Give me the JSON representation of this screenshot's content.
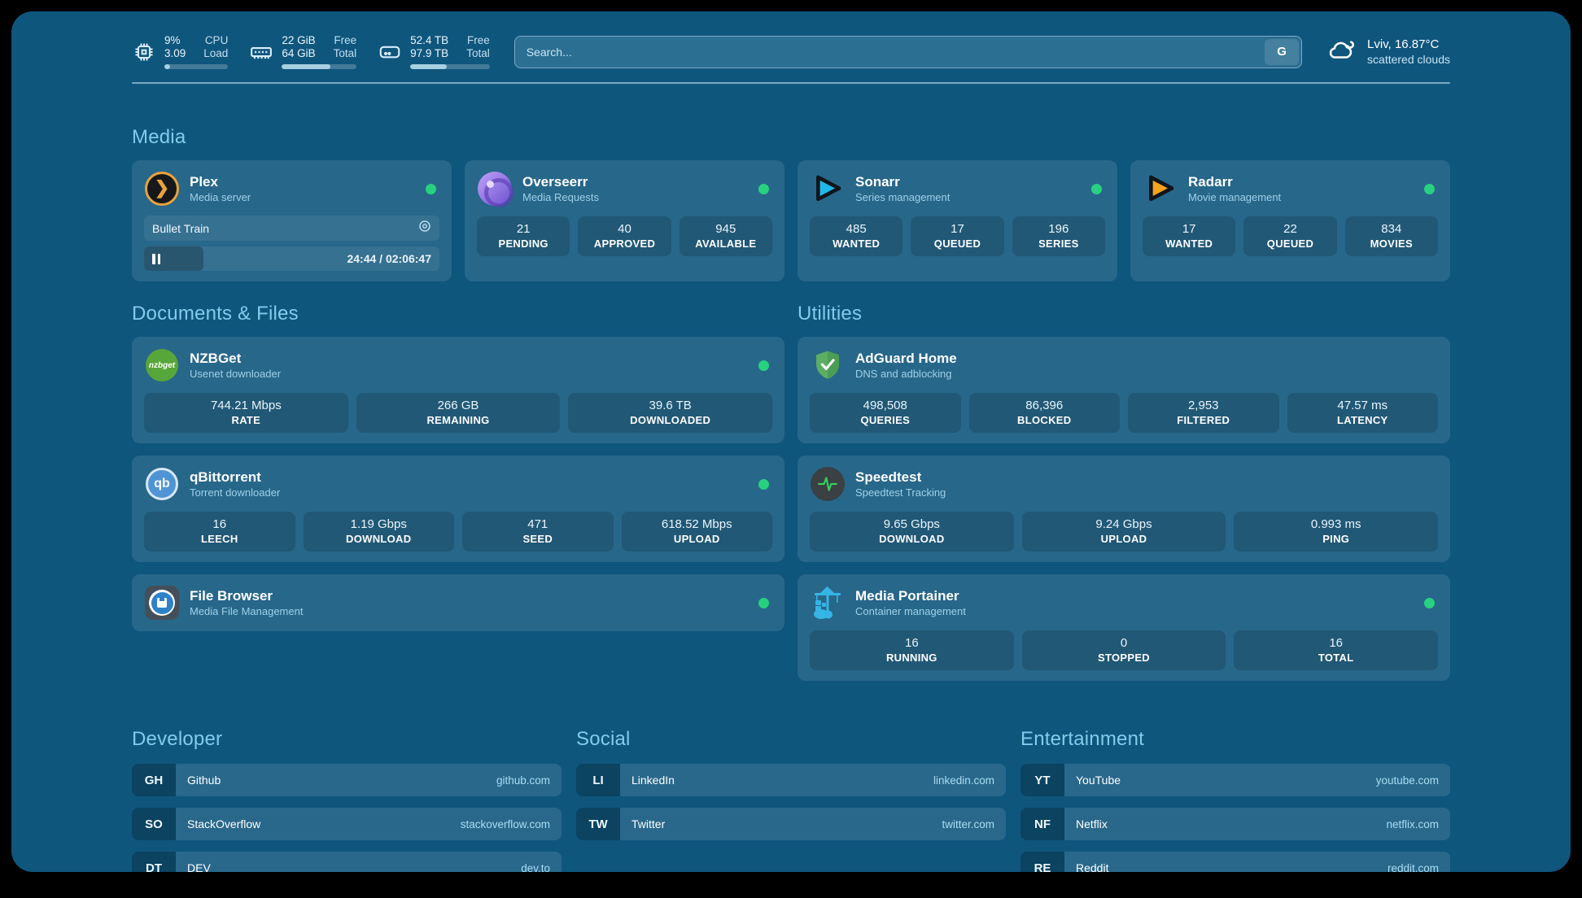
{
  "topbar": {
    "cpu": {
      "value1": "9%",
      "value2": "3.09",
      "label1": "CPU",
      "label2": "Load",
      "progress": 9
    },
    "ram": {
      "value1": "22 GiB",
      "value2": "64 GiB",
      "label1": "Free",
      "label2": "Total",
      "progress": 65
    },
    "disk": {
      "value1": "52.4 TB",
      "value2": "97.9 TB",
      "label1": "Free",
      "label2": "Total",
      "progress": 46
    },
    "search": {
      "placeholder": "Search...",
      "button_label": "G"
    },
    "weather": {
      "location_temp": "Lviv, 16.87°C",
      "condition": "scattered clouds"
    }
  },
  "sections": {
    "media": "Media",
    "documents": "Documents & Files",
    "utilities": "Utilities",
    "developer": "Developer",
    "social": "Social",
    "entertainment": "Entertainment"
  },
  "media_cards": {
    "plex": {
      "title": "Plex",
      "subtitle": "Media server",
      "now_playing": "Bullet Train",
      "time": "24:44 / 02:06:47",
      "progress_percent": 20
    },
    "overseerr": {
      "title": "Overseerr",
      "subtitle": "Media Requests",
      "stats": [
        {
          "value": "21",
          "label": "PENDING"
        },
        {
          "value": "40",
          "label": "APPROVED"
        },
        {
          "value": "945",
          "label": "AVAILABLE"
        }
      ]
    },
    "sonarr": {
      "title": "Sonarr",
      "subtitle": "Series management",
      "stats": [
        {
          "value": "485",
          "label": "WANTED"
        },
        {
          "value": "17",
          "label": "QUEUED"
        },
        {
          "value": "196",
          "label": "SERIES"
        }
      ]
    },
    "radarr": {
      "title": "Radarr",
      "subtitle": "Movie management",
      "stats": [
        {
          "value": "17",
          "label": "WANTED"
        },
        {
          "value": "22",
          "label": "QUEUED"
        },
        {
          "value": "834",
          "label": "MOVIES"
        }
      ]
    }
  },
  "documents_cards": {
    "nzbget": {
      "title": "NZBGet",
      "subtitle": "Usenet downloader",
      "icon_text": "nzbget",
      "stats": [
        {
          "value": "744.21 Mbps",
          "label": "RATE"
        },
        {
          "value": "266 GB",
          "label": "REMAINING"
        },
        {
          "value": "39.6 TB",
          "label": "DOWNLOADED"
        }
      ]
    },
    "qbittorrent": {
      "title": "qBittorrent",
      "subtitle": "Torrent downloader",
      "icon_text": "qb",
      "stats": [
        {
          "value": "16",
          "label": "LEECH"
        },
        {
          "value": "1.19 Gbps",
          "label": "DOWNLOAD"
        },
        {
          "value": "471",
          "label": "SEED"
        },
        {
          "value": "618.52 Mbps",
          "label": "UPLOAD"
        }
      ]
    },
    "filebrowser": {
      "title": "File Browser",
      "subtitle": "Media File Management"
    }
  },
  "utilities_cards": {
    "adguard": {
      "title": "AdGuard Home",
      "subtitle": "DNS and adblocking",
      "stats": [
        {
          "value": "498,508",
          "label": "QUERIES"
        },
        {
          "value": "86,396",
          "label": "BLOCKED"
        },
        {
          "value": "2,953",
          "label": "FILTERED"
        },
        {
          "value": "47.57 ms",
          "label": "LATENCY"
        }
      ]
    },
    "speedtest": {
      "title": "Speedtest",
      "subtitle": "Speedtest Tracking",
      "stats": [
        {
          "value": "9.65 Gbps",
          "label": "DOWNLOAD"
        },
        {
          "value": "9.24 Gbps",
          "label": "UPLOAD"
        },
        {
          "value": "0.993 ms",
          "label": "PING"
        }
      ]
    },
    "portainer": {
      "title": "Media Portainer",
      "subtitle": "Container management",
      "stats": [
        {
          "value": "16",
          "label": "RUNNING"
        },
        {
          "value": "0",
          "label": "STOPPED"
        },
        {
          "value": "16",
          "label": "TOTAL"
        }
      ]
    }
  },
  "links": {
    "developer": [
      {
        "abbr": "GH",
        "name": "Github",
        "domain": "github.com"
      },
      {
        "abbr": "SO",
        "name": "StackOverflow",
        "domain": "stackoverflow.com"
      },
      {
        "abbr": "DT",
        "name": "DEV",
        "domain": "dev.to"
      }
    ],
    "social": [
      {
        "abbr": "LI",
        "name": "LinkedIn",
        "domain": "linkedin.com"
      },
      {
        "abbr": "TW",
        "name": "Twitter",
        "domain": "twitter.com"
      }
    ],
    "entertainment": [
      {
        "abbr": "YT",
        "name": "YouTube",
        "domain": "youtube.com"
      },
      {
        "abbr": "NF",
        "name": "Netflix",
        "domain": "netflix.com"
      },
      {
        "abbr": "RE",
        "name": "Reddit",
        "domain": "reddit.com"
      }
    ]
  },
  "colors": {
    "accent": "#82CBEA",
    "status_online": "#27D17F",
    "background": "#0F567D"
  }
}
